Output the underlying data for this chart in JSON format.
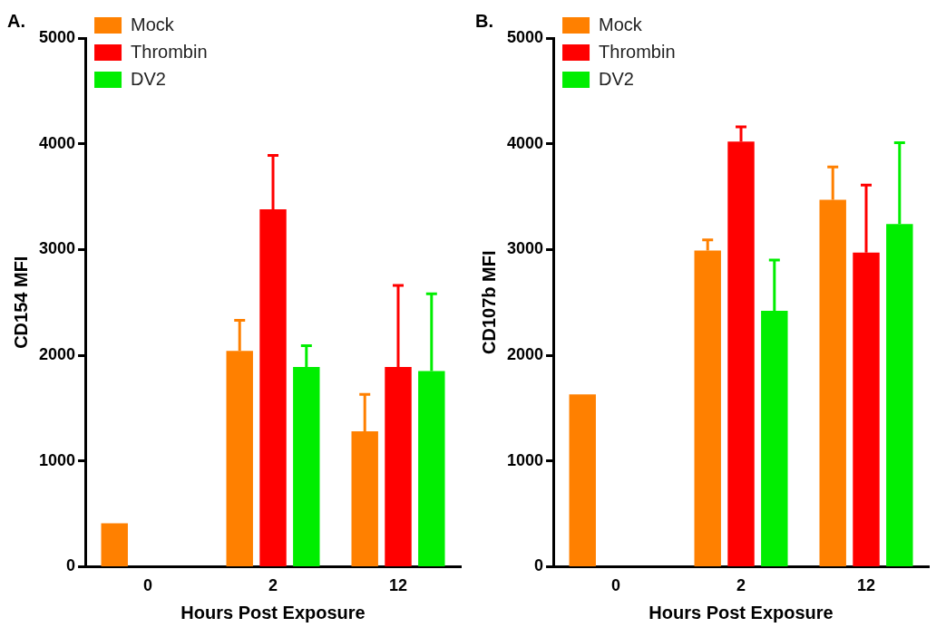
{
  "chart_data": [
    {
      "type": "bar",
      "title": "A.",
      "xlabel": "Hours Post Exposure",
      "ylabel": "CD154 MFI",
      "categories": [
        "0",
        "2",
        "12"
      ],
      "series": [
        {
          "name": "Mock",
          "color": "#ff8000",
          "values": [
            410,
            2040,
            1280
          ],
          "errors": [
            null,
            [
              2040,
              2330
            ],
            [
              1280,
              1630
            ]
          ]
        },
        {
          "name": "Thrombin",
          "color": "#ff0000",
          "values": [
            null,
            3380,
            1890
          ],
          "errors": [
            null,
            [
              3380,
              3890
            ],
            [
              1890,
              2660
            ]
          ]
        },
        {
          "name": "DV2",
          "color": "#00ee00",
          "values": [
            null,
            1890,
            1850
          ],
          "errors": [
            null,
            [
              1890,
              2090
            ],
            [
              1850,
              2580
            ]
          ]
        }
      ],
      "ylim": [
        0,
        5000
      ],
      "yticks": [
        0,
        1000,
        2000,
        3000,
        4000,
        5000
      ],
      "grid": false,
      "legend": "top left"
    },
    {
      "type": "bar",
      "title": "B.",
      "xlabel": "Hours Post Exposure",
      "ylabel": "CD107b MFI",
      "categories": [
        "0",
        "2",
        "12"
      ],
      "series": [
        {
          "name": "Mock",
          "color": "#ff8000",
          "values": [
            1630,
            2990,
            3470
          ],
          "errors": [
            null,
            [
              2990,
              3090
            ],
            [
              3470,
              3780
            ]
          ]
        },
        {
          "name": "Thrombin",
          "color": "#ff0000",
          "values": [
            null,
            4020,
            2970
          ],
          "errors": [
            null,
            [
              4020,
              4160
            ],
            [
              2970,
              3610
            ]
          ]
        },
        {
          "name": "DV2",
          "color": "#00ee00",
          "values": [
            null,
            2420,
            3240
          ],
          "errors": [
            null,
            [
              2420,
              2900
            ],
            [
              3240,
              4010
            ]
          ]
        }
      ],
      "ylim": [
        0,
        5000
      ],
      "yticks": [
        0,
        1000,
        2000,
        3000,
        4000,
        5000
      ],
      "grid": false,
      "legend": "top left"
    }
  ]
}
